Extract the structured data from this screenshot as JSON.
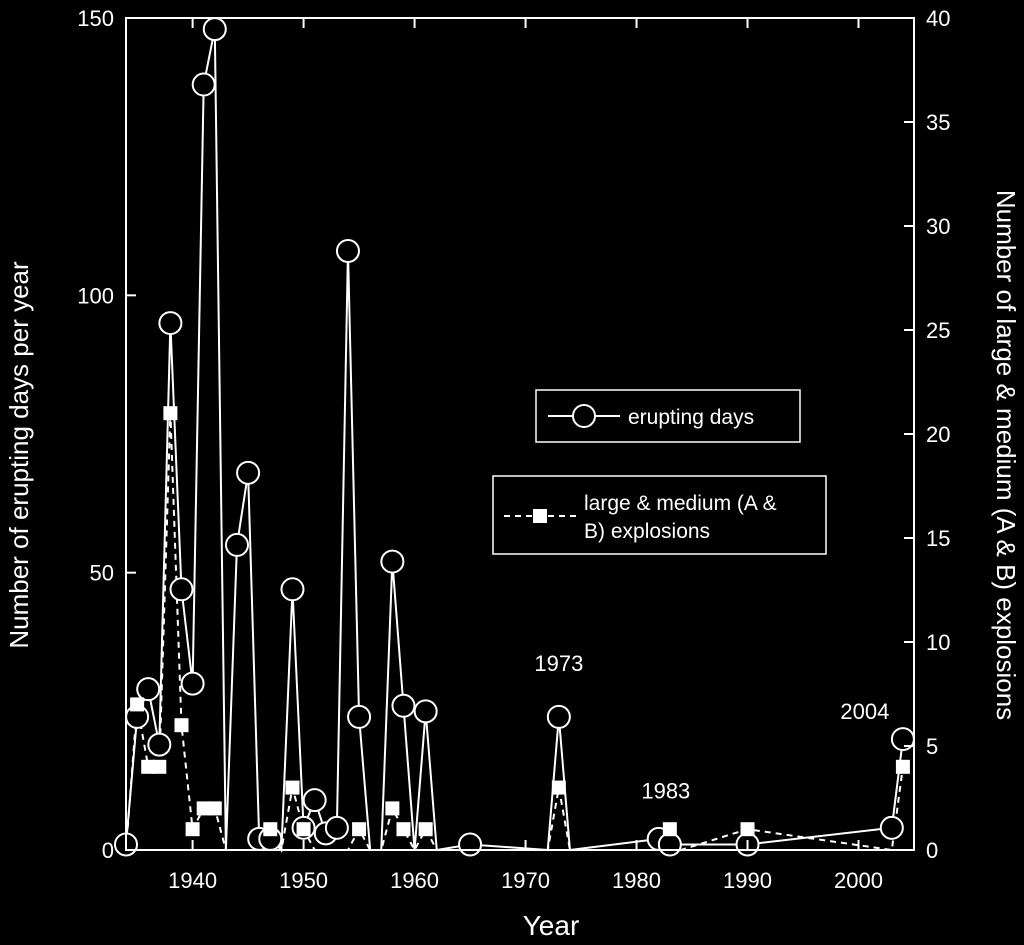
{
  "chart_data": {
    "type": "line",
    "xlabel": "Year",
    "ylabel_left": "Number of erupting days per year",
    "ylabel_right": "Number of large & medium (A & B) explosions",
    "xlim": [
      1934,
      2005
    ],
    "ylim_left": [
      0,
      150
    ],
    "ylim_right": [
      0,
      40
    ],
    "x_ticks": [
      1940,
      1950,
      1960,
      1970,
      1980,
      1990,
      2000
    ],
    "y_ticks_left": [
      0,
      50,
      100,
      150
    ],
    "y_ticks_right": [
      0,
      5,
      10,
      15,
      20,
      25,
      30,
      35,
      40
    ],
    "grid": false,
    "legend_position": "right-middle",
    "series": [
      {
        "name": "erupting days",
        "axis": "left",
        "style": "solid line, open circle markers",
        "x": [
          1934,
          1935,
          1936,
          1937,
          1938,
          1939,
          1940,
          1941,
          1942,
          1943,
          1944,
          1945,
          1946,
          1947,
          1948,
          1949,
          1950,
          1951,
          1952,
          1953,
          1954,
          1955,
          1956,
          1957,
          1958,
          1959,
          1960,
          1961,
          1962,
          1965,
          1972,
          1973,
          1974,
          1982,
          1983,
          1990,
          2003,
          2004
        ],
        "values": [
          1,
          24,
          29,
          19,
          95,
          47,
          30,
          138,
          148,
          0,
          55,
          68,
          2,
          2,
          0,
          47,
          4,
          9,
          3,
          4,
          108,
          24,
          0,
          0,
          52,
          26,
          0,
          25,
          0,
          1,
          0,
          24,
          0,
          2,
          1,
          1,
          4,
          20
        ]
      },
      {
        "name": "large & medium (A & B) explosions",
        "axis": "right",
        "style": "dashed line, filled square markers",
        "x": [
          1934,
          1935,
          1936,
          1937,
          1938,
          1939,
          1940,
          1941,
          1942,
          1943,
          1946,
          1947,
          1948,
          1949,
          1950,
          1951,
          1954,
          1955,
          1956,
          1957,
          1958,
          1959,
          1960,
          1961,
          1962,
          1972,
          1973,
          1974,
          1982,
          1983,
          1984,
          1990,
          2003,
          2004
        ],
        "values": [
          0,
          7,
          4,
          4,
          21,
          6,
          1,
          2,
          2,
          0,
          0,
          1,
          0,
          3,
          1,
          0,
          0,
          1,
          0,
          0,
          2,
          1,
          0,
          1,
          0,
          0,
          3,
          0,
          0,
          1,
          0,
          1,
          0,
          4
        ]
      }
    ],
    "legend": {
      "erupting_days": "erupting days",
      "explosions_line1": "large & medium (A &",
      "explosions_line2": "B) explosions"
    },
    "annotations": [
      {
        "text": "1973",
        "x": 1973,
        "y": 24
      },
      {
        "text": "1983",
        "x": 1983,
        "y": 1
      },
      {
        "text": "2004",
        "x": 2004,
        "y": 20
      }
    ]
  }
}
